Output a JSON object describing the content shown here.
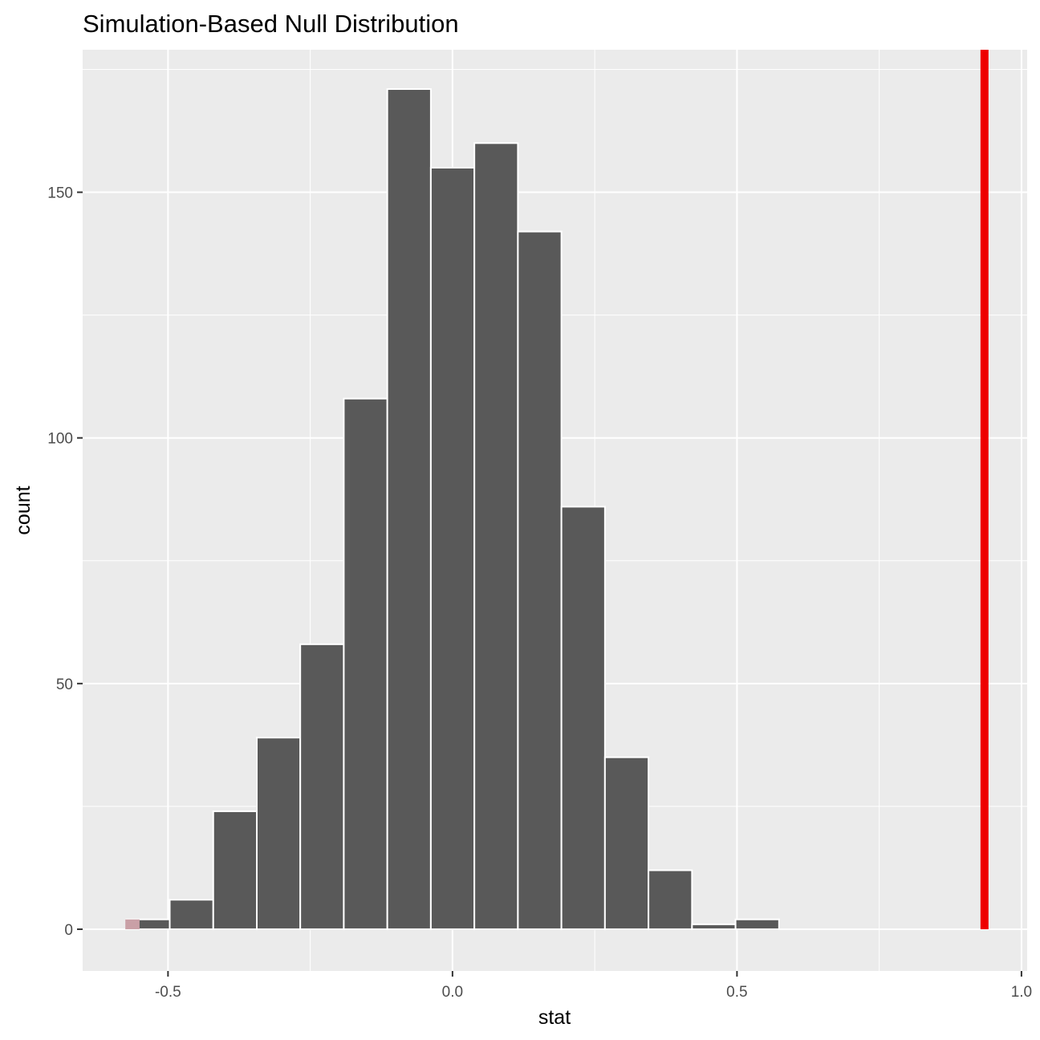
{
  "chart_data": {
    "type": "bar",
    "title": "Simulation-Based Null Distribution",
    "xlabel": "stat",
    "ylabel": "count",
    "xlim": [
      -0.65,
      1.01
    ],
    "ylim": [
      -8.5,
      179
    ],
    "x_ticks": [
      -0.5,
      0.0,
      0.5,
      1.0
    ],
    "x_tick_labels": [
      "-0.5",
      "0.0",
      "0.5",
      "1.0"
    ],
    "y_ticks": [
      0,
      50,
      100,
      150
    ],
    "y_tick_labels": [
      "0",
      "50",
      "100",
      "150"
    ],
    "grid": true,
    "bin_width": 0.0765,
    "bins": [
      {
        "x": -0.5352,
        "count": 2
      },
      {
        "x": -0.4587,
        "count": 6
      },
      {
        "x": -0.3822,
        "count": 24
      },
      {
        "x": -0.3057,
        "count": 39
      },
      {
        "x": -0.2293,
        "count": 58
      },
      {
        "x": -0.1528,
        "count": 108
      },
      {
        "x": -0.0763,
        "count": 171
      },
      {
        "x": 0.0002,
        "count": 155
      },
      {
        "x": 0.0767,
        "count": 160
      },
      {
        "x": 0.1532,
        "count": 142
      },
      {
        "x": 0.2297,
        "count": 86
      },
      {
        "x": 0.3062,
        "count": 35
      },
      {
        "x": 0.3827,
        "count": 12
      },
      {
        "x": 0.4592,
        "count": 1
      },
      {
        "x": 0.5357,
        "count": 2
      },
      {
        "x": 0.6122,
        "count": 0
      },
      {
        "x": 0.6887,
        "count": 0
      },
      {
        "x": 0.7652,
        "count": 0
      },
      {
        "x": 0.8417,
        "count": 0
      },
      {
        "x": 0.9182,
        "count": 0
      }
    ],
    "shade": {
      "xmin": -0.575,
      "xmax": -0.55,
      "count": 2,
      "color": "#c9a0a6"
    },
    "observed_stat": 0.935,
    "bar_fill": "#595959",
    "bar_stroke": "#ffffff",
    "panel_background": "#ebebeb",
    "grid_color": "#ffffff",
    "observed_line_color": "#ee0000"
  }
}
